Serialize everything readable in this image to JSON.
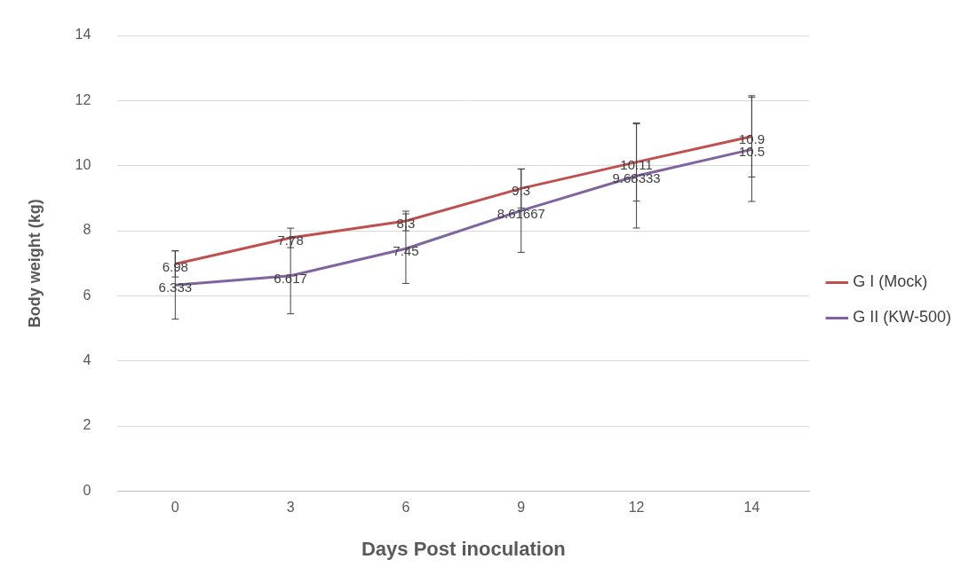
{
  "chart_data": {
    "type": "line",
    "x_label": "Days Post inoculation",
    "y_label": "Body weight (kg)",
    "categories": [
      "0",
      "3",
      "6",
      "9",
      "12",
      "14"
    ],
    "series": [
      {
        "name": "G I (Mock)",
        "color": "#c0504d",
        "values": [
          6.98,
          7.78,
          8.3,
          9.3,
          10.11,
          10.9
        ],
        "errors": [
          0.4,
          0.3,
          0.3,
          0.6,
          1.2,
          1.25
        ]
      },
      {
        "name": "G II (KW-500)",
        "color": "#8064a2",
        "values": [
          6.333,
          6.617,
          7.45,
          8.61667,
          9.68333,
          10.5
        ],
        "errors": [
          1.05,
          1.17,
          1.07,
          1.28,
          1.6,
          1.6
        ]
      }
    ],
    "ylim": [
      0,
      14
    ],
    "yticks": [
      0,
      2,
      4,
      6,
      8,
      10,
      12,
      14
    ],
    "grid": true,
    "legend": "right",
    "data_labels": true
  }
}
